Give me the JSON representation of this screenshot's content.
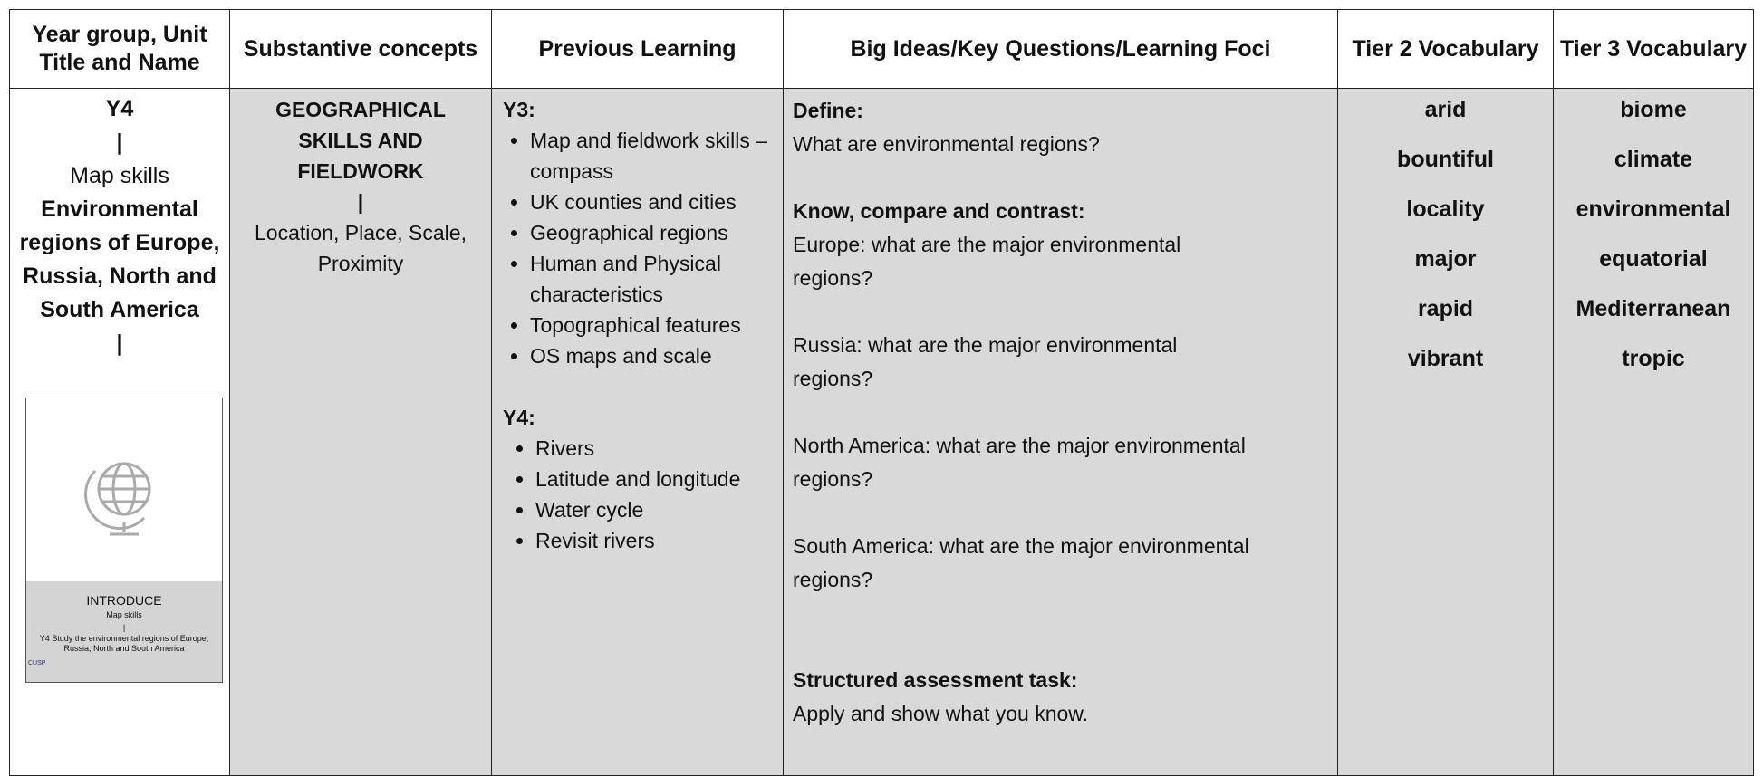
{
  "header": {
    "columns": [
      "Year group, Unit Title and Name",
      "Substantive concepts",
      "Previous Learning",
      "Big Ideas/Key Questions/Learning Foci",
      "Tier 2 Vocabulary",
      "Tier 3 Vocabulary"
    ]
  },
  "row": {
    "unit": {
      "year": "Y4",
      "separator_1": "|",
      "topic": "Map skills",
      "title": "Environmental regions of Europe, Russia, North and South America",
      "separator_2": "|",
      "thumbnail": {
        "label": "INTRODUCE",
        "topic": "Map skills",
        "separator": "|",
        "description": "Y4 Study the environmental regions of Europe, Russia, North and South America",
        "logo": "CUSP"
      }
    },
    "concepts": {
      "title": "GEOGRAPHICAL SKILLS AND FIELDWORK",
      "separator": "|",
      "detail": "Location, Place, Scale, Proximity"
    },
    "previous_learning": [
      {
        "heading": "Y3:",
        "items": [
          "Map and fieldwork skills – compass",
          "UK counties and cities",
          "Geographical regions",
          "Human and Physical characteristics",
          "Topographical features",
          "OS maps and scale"
        ]
      },
      {
        "heading": "Y4:",
        "items": [
          "Rivers",
          "Latitude and longitude",
          "Water cycle",
          "Revisit rivers"
        ]
      }
    ],
    "big_ideas": [
      {
        "heading": "Define:",
        "lines": [
          "What are environmental regions?"
        ]
      },
      {
        "heading": "Know, compare and contrast:",
        "lines": [
          "Europe: what are the major environmental regions?",
          "Russia: what are the major environmental regions?",
          "North America: what are the major environmental regions?",
          "South America: what are the major environmental regions?"
        ]
      },
      {
        "heading": "Structured assessment task:",
        "lines": [
          "Apply and show what you know."
        ]
      }
    ],
    "tier2": [
      "arid",
      "bountiful",
      "locality",
      "major",
      "rapid",
      "vibrant"
    ],
    "tier3": [
      "biome",
      "climate",
      "environmental",
      "equatorial",
      "Mediterranean",
      "tropic"
    ]
  }
}
